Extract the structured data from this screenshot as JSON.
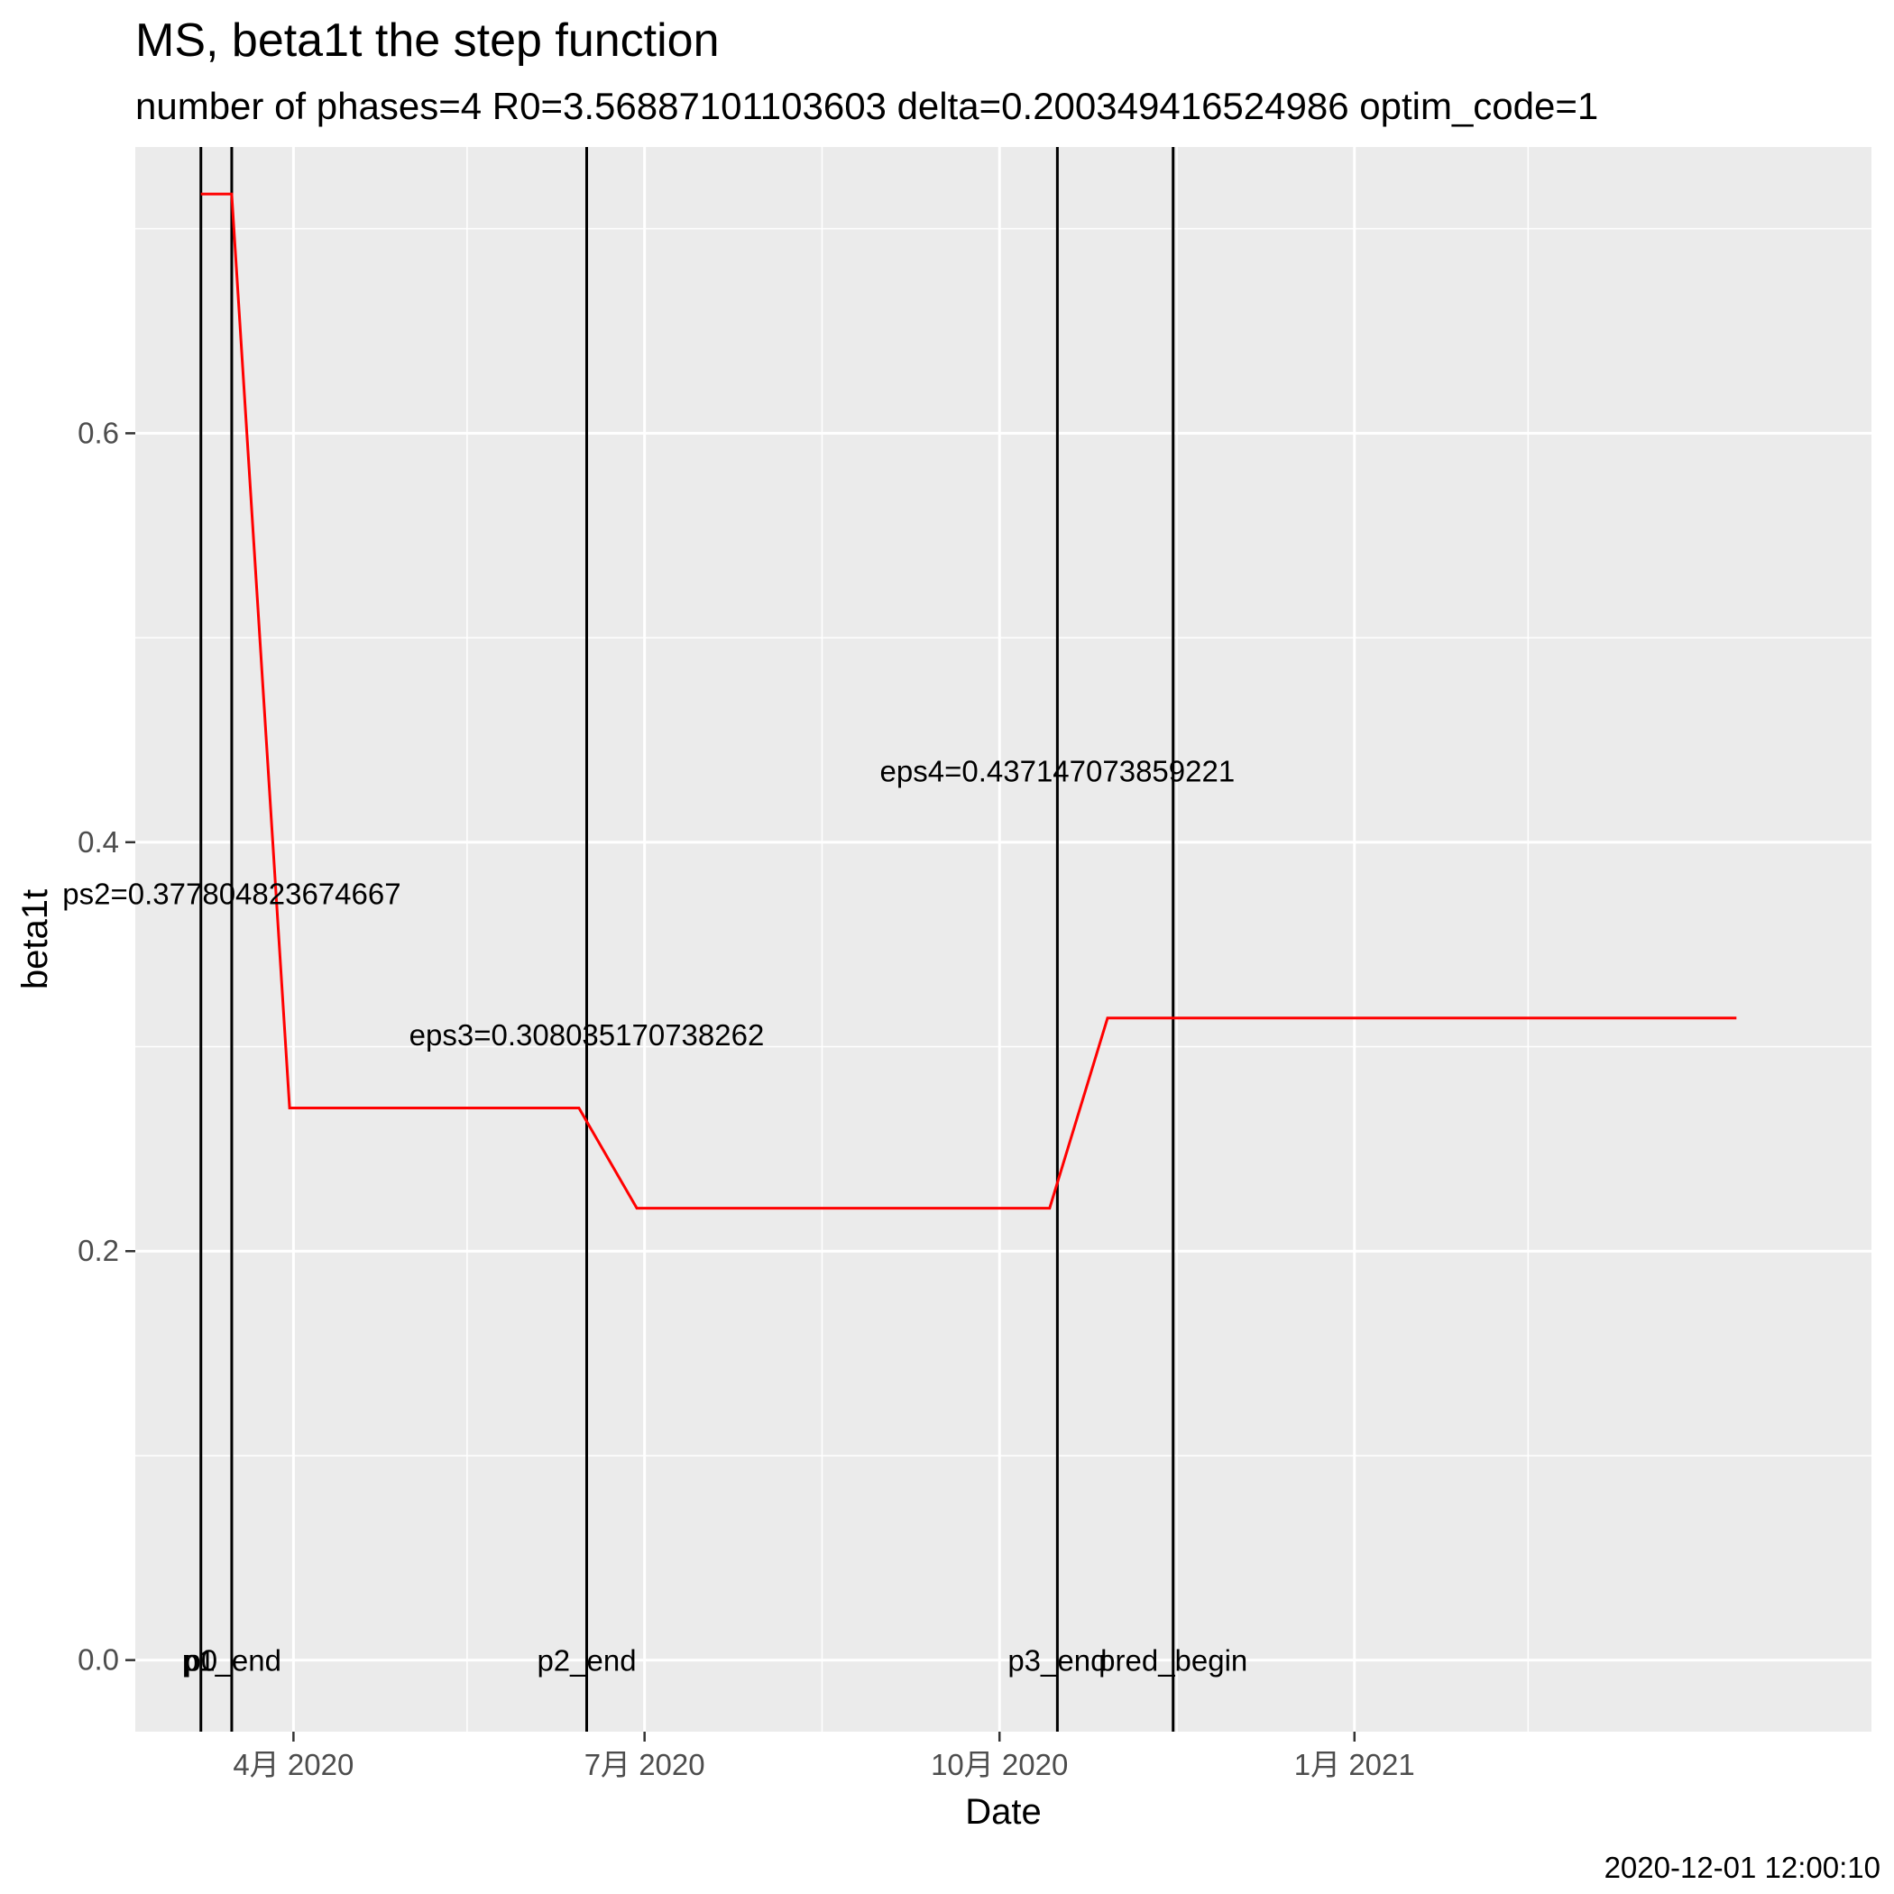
{
  "chart_data": {
    "type": "line",
    "title": "MS, beta1t the step function",
    "subtitle": "number of phases=4   R0=3.56887101103603   delta=0.200349416524986   optim_code=1",
    "xlabel": "Date",
    "ylabel": "beta1t",
    "caption": "2020-12-01 12:00:10",
    "xlim": [
      "2020-02-20",
      "2021-05-15"
    ],
    "ylim": [
      -0.035,
      0.74
    ],
    "grid": true,
    "panel_color": "#ebebeb",
    "line_color": "#ff0000",
    "x_ticks": [
      {
        "date": "2020-04-01",
        "label": "4月 2020"
      },
      {
        "date": "2020-07-01",
        "label": "7月 2020"
      },
      {
        "date": "2020-10-01",
        "label": "10月 2020"
      },
      {
        "date": "2021-01-01",
        "label": "1月 2021"
      }
    ],
    "x_minor_ticks": [
      "2020-02-15",
      "2020-05-16",
      "2020-08-16",
      "2020-11-16",
      "2021-02-15",
      "2021-05-16"
    ],
    "y_ticks": [
      {
        "value": 0.0,
        "label": "0.0"
      },
      {
        "value": 0.2,
        "label": "0.2"
      },
      {
        "value": 0.4,
        "label": "0.4"
      },
      {
        "value": 0.6,
        "label": "0.6"
      }
    ],
    "y_minor_ticks": [
      0.1,
      0.3,
      0.5,
      0.7
    ],
    "series": [
      {
        "points": [
          {
            "x": "2020-03-08",
            "y": 0.717
          },
          {
            "x": "2020-03-16",
            "y": 0.717
          },
          {
            "x": "2020-03-31",
            "y": 0.27
          },
          {
            "x": "2020-06-14",
            "y": 0.27
          },
          {
            "x": "2020-06-29",
            "y": 0.221
          },
          {
            "x": "2020-10-14",
            "y": 0.221
          },
          {
            "x": "2020-10-29",
            "y": 0.314
          },
          {
            "x": "2021-04-10",
            "y": 0.314
          }
        ]
      }
    ],
    "vlines": [
      {
        "date": "2020-03-08",
        "label": "p0"
      },
      {
        "date": "2020-03-16",
        "label": "p1_end"
      },
      {
        "date": "2020-06-16",
        "label": "p2_end"
      },
      {
        "date": "2020-10-16",
        "label": "p3_end"
      },
      {
        "date": "2020-11-15",
        "label": "pred_begin"
      }
    ],
    "vline_label_y": 0.0,
    "annotations": [
      {
        "date": "2020-03-16",
        "y": 0.375,
        "text": "ps2=0.377804823674667"
      },
      {
        "date": "2020-06-16",
        "y": 0.306,
        "text": "eps3=0.308035170738262"
      },
      {
        "date": "2020-10-16",
        "y": 0.435,
        "text": "eps4=0.437147073859221"
      }
    ]
  }
}
